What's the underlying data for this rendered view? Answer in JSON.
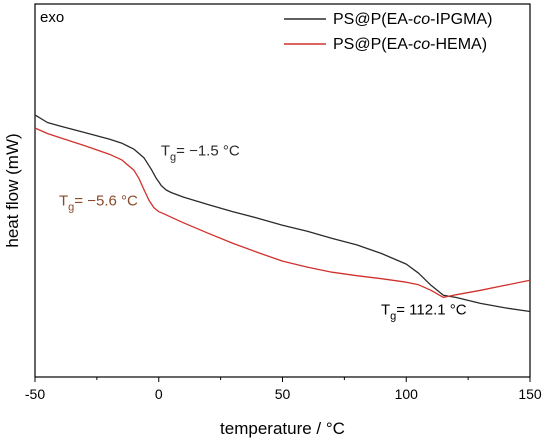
{
  "chart_data": {
    "type": "line",
    "title": "",
    "xlabel": "temperature / °C",
    "ylabel": "heat flow (mW)",
    "xlim": [
      -50,
      150
    ],
    "y_unit_label": "exo",
    "x_ticks": [
      -50,
      0,
      50,
      100,
      150
    ],
    "x_tick_labels": [
      "-50",
      "0",
      "50",
      "100",
      "150"
    ],
    "y_ticks_labeled": false,
    "grid": false,
    "legend_position": "top-right",
    "colors": {
      "series_1": "#2b2b2b",
      "series_2": "#d0312d",
      "annotation_2": "#8a4a2a"
    },
    "series": [
      {
        "name": "PS@P(EA-co-IPGMA)",
        "legend_html": "PS@P(EA-<tspan font-style=\"italic\">co</tspan>-IPGMA)",
        "x": [
          -50,
          -45,
          -40,
          -30,
          -20,
          -15,
          -10,
          -6,
          -3,
          -1,
          0,
          1,
          3,
          5,
          10,
          20,
          30,
          40,
          50,
          60,
          70,
          80,
          90,
          100,
          105,
          110,
          115,
          120,
          130,
          140,
          150
        ],
        "y": [
          0.7,
          0.685,
          0.678,
          0.665,
          0.652,
          0.644,
          0.632,
          0.615,
          0.592,
          0.574,
          0.567,
          0.56,
          0.551,
          0.546,
          0.537,
          0.522,
          0.508,
          0.495,
          0.481,
          0.469,
          0.455,
          0.442,
          0.425,
          0.404,
          0.386,
          0.362,
          0.342,
          0.338,
          0.326,
          0.317,
          0.31
        ]
      },
      {
        "name": "PS@P(EA-co-HEMA)",
        "legend_html": "PS@P(EA-<tspan font-style=\"italic\">co</tspan>-HEMA)",
        "x": [
          -50,
          -45,
          -40,
          -30,
          -20,
          -15,
          -10,
          -8,
          -6,
          -4,
          -2,
          0,
          2,
          5,
          10,
          20,
          30,
          40,
          50,
          60,
          70,
          80,
          90,
          100,
          105,
          110,
          115,
          120,
          130,
          140,
          150
        ],
        "y": [
          0.674,
          0.663,
          0.655,
          0.639,
          0.622,
          0.611,
          0.59,
          0.574,
          0.552,
          0.531,
          0.516,
          0.508,
          0.504,
          0.497,
          0.486,
          0.465,
          0.445,
          0.427,
          0.41,
          0.398,
          0.388,
          0.381,
          0.375,
          0.368,
          0.363,
          0.352,
          0.338,
          0.343,
          0.352,
          0.362,
          0.372
        ]
      }
    ],
    "ylim": [
      0.18,
      0.92
    ],
    "annotations": [
      {
        "tg_label": "T",
        "sub": "g",
        "text": "= −1.5 °C",
        "series": 0,
        "color": "#2b2b2b"
      },
      {
        "tg_label": "T",
        "sub": "g",
        "text": "= −5.6 °C",
        "series": 1,
        "color": "#8a4a2a"
      },
      {
        "tg_label": "T",
        "sub": "g",
        "text": "= 112.1 °C",
        "series": 0,
        "color": "#000000"
      }
    ]
  }
}
